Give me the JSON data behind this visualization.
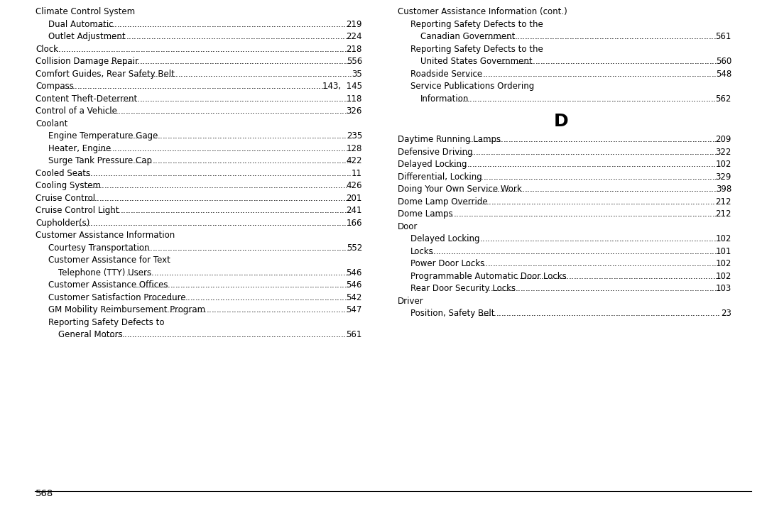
{
  "background_color": "#ffffff",
  "font_family": "monospace",
  "page_number": "568",
  "left_column": [
    {
      "text": "Climate Control System",
      "indent": 0,
      "page": "",
      "dots": false
    },
    {
      "text": "Dual Automatic",
      "indent": 1,
      "page": "219",
      "dots": true
    },
    {
      "text": "Outlet Adjustment",
      "indent": 1,
      "page": "224",
      "dots": true
    },
    {
      "text": "Clock",
      "indent": 0,
      "page": "218",
      "dots": true
    },
    {
      "text": "Collision Damage Repair",
      "indent": 0,
      "page": "556",
      "dots": true
    },
    {
      "text": "Comfort Guides, Rear Safety Belt",
      "indent": 0,
      "page": "35",
      "dots": true
    },
    {
      "text": "Compass",
      "indent": 0,
      "page": "143,  145",
      "dots": true
    },
    {
      "text": "Content Theft-Deterrent",
      "indent": 0,
      "page": "118",
      "dots": true
    },
    {
      "text": "Control of a Vehicle",
      "indent": 0,
      "page": "326",
      "dots": true
    },
    {
      "text": "Coolant",
      "indent": 0,
      "page": "",
      "dots": false
    },
    {
      "text": "Engine Temperature Gage",
      "indent": 1,
      "page": "235",
      "dots": true
    },
    {
      "text": "Heater, Engine",
      "indent": 1,
      "page": "128",
      "dots": true
    },
    {
      "text": "Surge Tank Pressure Cap",
      "indent": 1,
      "page": "422",
      "dots": true
    },
    {
      "text": "Cooled Seats",
      "indent": 0,
      "page": "11",
      "dots": true
    },
    {
      "text": "Cooling System",
      "indent": 0,
      "page": "426",
      "dots": true
    },
    {
      "text": "Cruise Control",
      "indent": 0,
      "page": "201",
      "dots": true
    },
    {
      "text": "Cruise Control Light",
      "indent": 0,
      "page": "241",
      "dots": true
    },
    {
      "text": "Cupholder(s)",
      "indent": 0,
      "page": "166",
      "dots": true
    },
    {
      "text": "Customer Assistance Information",
      "indent": 0,
      "page": "",
      "dots": false
    },
    {
      "text": "Courtesy Transportation",
      "indent": 1,
      "page": "552",
      "dots": true
    },
    {
      "text": "Customer Assistance for Text",
      "indent": 1,
      "page": "",
      "dots": false
    },
    {
      "text": "Telephone (TTY) Users",
      "indent": 2,
      "page": "546",
      "dots": true
    },
    {
      "text": "Customer Assistance Offices",
      "indent": 1,
      "page": "546",
      "dots": true
    },
    {
      "text": "Customer Satisfaction Procedure",
      "indent": 1,
      "page": "542",
      "dots": true
    },
    {
      "text": "GM Mobility Reimbursement Program",
      "indent": 1,
      "page": "547",
      "dots": true
    },
    {
      "text": "Reporting Safety Defects to",
      "indent": 1,
      "page": "",
      "dots": false
    },
    {
      "text": "General Motors",
      "indent": 2,
      "page": "561",
      "dots": true
    }
  ],
  "right_column": [
    {
      "text": "Customer Assistance Information (cont.)",
      "indent": 0,
      "page": "",
      "dots": false
    },
    {
      "text": "Reporting Safety Defects to the",
      "indent": 1,
      "page": "",
      "dots": false
    },
    {
      "text": "Canadian Government",
      "indent": 2,
      "page": "561",
      "dots": true
    },
    {
      "text": "Reporting Safety Defects to the",
      "indent": 1,
      "page": "",
      "dots": false
    },
    {
      "text": "United States Government",
      "indent": 2,
      "page": "560",
      "dots": true
    },
    {
      "text": "Roadside Service",
      "indent": 1,
      "page": "548",
      "dots": true
    },
    {
      "text": "Service Publications Ordering",
      "indent": 1,
      "page": "",
      "dots": false
    },
    {
      "text": "Information",
      "indent": 2,
      "page": "562",
      "dots": true
    },
    {
      "text": "D_HEADER",
      "indent": 0,
      "page": "",
      "dots": false
    },
    {
      "text": "Daytime Running Lamps",
      "indent": 0,
      "page": "209",
      "dots": true
    },
    {
      "text": "Defensive Driving",
      "indent": 0,
      "page": "322",
      "dots": true
    },
    {
      "text": "Delayed Locking",
      "indent": 0,
      "page": "102",
      "dots": true
    },
    {
      "text": "Differential, Locking",
      "indent": 0,
      "page": "329",
      "dots": true
    },
    {
      "text": "Doing Your Own Service Work",
      "indent": 0,
      "page": "398",
      "dots": true
    },
    {
      "text": "Dome Lamp Override",
      "indent": 0,
      "page": "212",
      "dots": true
    },
    {
      "text": "Dome Lamps",
      "indent": 0,
      "page": "212",
      "dots": true
    },
    {
      "text": "Door",
      "indent": 0,
      "page": "",
      "dots": false
    },
    {
      "text": "Delayed Locking",
      "indent": 1,
      "page": "102",
      "dots": true
    },
    {
      "text": "Locks",
      "indent": 1,
      "page": "101",
      "dots": true
    },
    {
      "text": "Power Door Locks",
      "indent": 1,
      "page": "102",
      "dots": true
    },
    {
      "text": "Programmable Automatic Door Locks",
      "indent": 1,
      "page": "102",
      "dots": true
    },
    {
      "text": "Rear Door Security Locks",
      "indent": 1,
      "page": "103",
      "dots": true
    },
    {
      "text": "Driver",
      "indent": 0,
      "page": "",
      "dots": false
    },
    {
      "text": "Position, Safety Belt",
      "indent": 1,
      "page": "23",
      "dots": true
    }
  ]
}
